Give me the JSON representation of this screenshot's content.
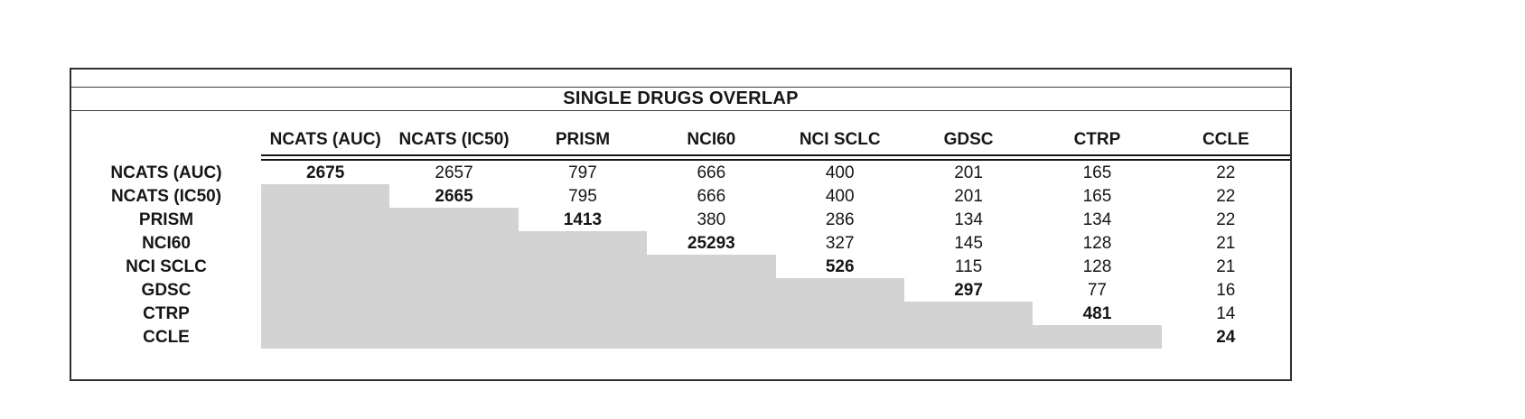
{
  "chart_data": {
    "type": "table",
    "title": "SINGLE DRUGS OVERLAP",
    "columns": [
      "NCATS (AUC)",
      "NCATS (IC50)",
      "PRISM",
      "NCI60",
      "NCI SCLC",
      "GDSC",
      "CTRP",
      "CCLE"
    ],
    "rows": [
      {
        "label": "NCATS (AUC)",
        "cells": [
          "2675",
          "2657",
          "797",
          "666",
          "400",
          "201",
          "165",
          "22"
        ]
      },
      {
        "label": "NCATS (IC50)",
        "cells": [
          null,
          "2665",
          "795",
          "666",
          "400",
          "201",
          "165",
          "22"
        ]
      },
      {
        "label": "PRISM",
        "cells": [
          null,
          null,
          "1413",
          "380",
          "286",
          "134",
          "134",
          "22"
        ]
      },
      {
        "label": "NCI60",
        "cells": [
          null,
          null,
          null,
          "25293",
          "327",
          "145",
          "128",
          "21"
        ]
      },
      {
        "label": "NCI SCLC",
        "cells": [
          null,
          null,
          null,
          null,
          "526",
          "115",
          "128",
          "21"
        ]
      },
      {
        "label": "GDSC",
        "cells": [
          null,
          null,
          null,
          null,
          null,
          "297",
          "77",
          "16"
        ]
      },
      {
        "label": "CTRP",
        "cells": [
          null,
          null,
          null,
          null,
          null,
          null,
          "481",
          "14"
        ]
      },
      {
        "label": "CCLE",
        "cells": [
          null,
          null,
          null,
          null,
          null,
          null,
          null,
          "24"
        ]
      }
    ],
    "layout_hints": {
      "lower_triangle": "shaded",
      "diagonal_values": "bold",
      "shade_color": "#d3d3d3"
    }
  }
}
